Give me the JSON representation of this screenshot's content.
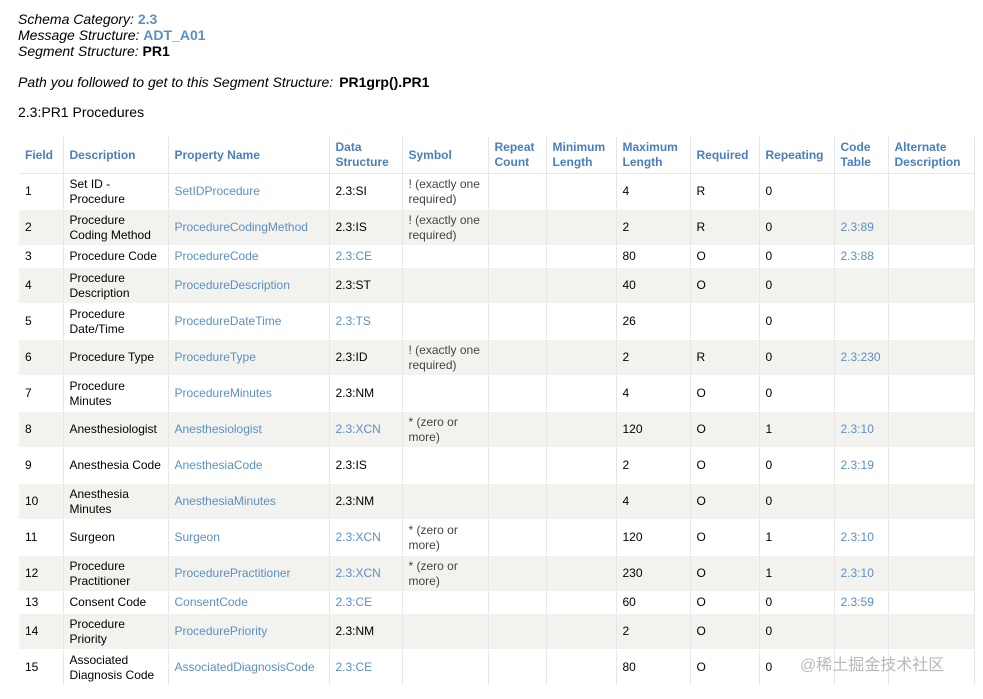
{
  "meta": {
    "schema_category_label": "Schema Category:",
    "schema_category": "2.3",
    "message_structure_label": "Message Structure:",
    "message_structure": "ADT_A01",
    "segment_structure_label": "Segment Structure:",
    "segment_structure": "PR1"
  },
  "path": {
    "label": "Path you followed to get to this Segment Structure:",
    "value": "PR1grp().PR1"
  },
  "segment_title": "2.3:PR1 Procedures",
  "columns": {
    "field": "Field",
    "description": "Description",
    "property_name": "Property Name",
    "data_structure": "Data Structure",
    "symbol": "Symbol",
    "repeat_count": "Repeat Count",
    "minimum_length": "Minimum Length",
    "maximum_length": "Maximum Length",
    "required": "Required",
    "repeating": "Repeating",
    "code_table": "Code Table",
    "alternate_description": "Alternate Description"
  },
  "rows": [
    {
      "field": "1",
      "description": "Set ID - Procedure",
      "property": "SetIDProcedure",
      "data_structure": "2.3:SI",
      "symbol": "! (exactly one required)",
      "repeat_count": "",
      "min_length": "",
      "max_length": "4",
      "required": "R",
      "repeating": "0",
      "code_table": "",
      "alt_desc": ""
    },
    {
      "field": "2",
      "description": "Procedure Coding Method",
      "property": "ProcedureCodingMethod",
      "data_structure": "2.3:IS",
      "symbol": "! (exactly one required)",
      "repeat_count": "",
      "min_length": "",
      "max_length": "2",
      "required": "R",
      "repeating": "0",
      "code_table": "2.3:89",
      "alt_desc": ""
    },
    {
      "field": "3",
      "description": "Procedure Code",
      "property": "ProcedureCode",
      "data_structure": "2.3:CE",
      "symbol": "",
      "repeat_count": "",
      "min_length": "",
      "max_length": "80",
      "required": "O",
      "repeating": "0",
      "code_table": "2.3:88",
      "alt_desc": ""
    },
    {
      "field": "4",
      "description": "Procedure Description",
      "property": "ProcedureDescription",
      "data_structure": "2.3:ST",
      "symbol": "",
      "repeat_count": "",
      "min_length": "",
      "max_length": "40",
      "required": "O",
      "repeating": "0",
      "code_table": "",
      "alt_desc": ""
    },
    {
      "field": "5",
      "description": "Procedure Date/Time",
      "property": "ProcedureDateTime",
      "data_structure": "2.3:TS",
      "symbol": "",
      "repeat_count": "",
      "min_length": "",
      "max_length": "26",
      "required": "",
      "repeating": "0",
      "code_table": "",
      "alt_desc": ""
    },
    {
      "field": "6",
      "description": "Procedure Type",
      "property": "ProcedureType",
      "data_structure": "2.3:ID",
      "symbol": "! (exactly one required)",
      "repeat_count": "",
      "min_length": "",
      "max_length": "2",
      "required": "R",
      "repeating": "0",
      "code_table": "2.3:230",
      "alt_desc": ""
    },
    {
      "field": "7",
      "description": "Procedure Minutes",
      "property": "ProcedureMinutes",
      "data_structure": "2.3:NM",
      "symbol": "",
      "repeat_count": "",
      "min_length": "",
      "max_length": "4",
      "required": "O",
      "repeating": "0",
      "code_table": "",
      "alt_desc": ""
    },
    {
      "field": "8",
      "description": "Anesthesiologist",
      "property": "Anesthesiologist",
      "data_structure": "2.3:XCN",
      "symbol": "* (zero or more)",
      "repeat_count": "",
      "min_length": "",
      "max_length": "120",
      "required": "O",
      "repeating": "1",
      "code_table": "2.3:10",
      "alt_desc": ""
    },
    {
      "field": "9",
      "description": "Anesthesia Code",
      "property": "AnesthesiaCode",
      "data_structure": "2.3:IS",
      "symbol": "",
      "repeat_count": "",
      "min_length": "",
      "max_length": "2",
      "required": "O",
      "repeating": "0",
      "code_table": "2.3:19",
      "alt_desc": ""
    },
    {
      "field": "10",
      "description": "Anesthesia Minutes",
      "property": "AnesthesiaMinutes",
      "data_structure": "2.3:NM",
      "symbol": "",
      "repeat_count": "",
      "min_length": "",
      "max_length": "4",
      "required": "O",
      "repeating": "0",
      "code_table": "",
      "alt_desc": ""
    },
    {
      "field": "11",
      "description": "Surgeon",
      "property": "Surgeon",
      "data_structure": "2.3:XCN",
      "symbol": "* (zero or more)",
      "repeat_count": "",
      "min_length": "",
      "max_length": "120",
      "required": "O",
      "repeating": "1",
      "code_table": "2.3:10",
      "alt_desc": ""
    },
    {
      "field": "12",
      "description": "Procedure Practitioner",
      "property": "ProcedurePractitioner",
      "data_structure": "2.3:XCN",
      "symbol": "* (zero or more)",
      "repeat_count": "",
      "min_length": "",
      "max_length": "230",
      "required": "O",
      "repeating": "1",
      "code_table": "2.3:10",
      "alt_desc": ""
    },
    {
      "field": "13",
      "description": "Consent Code",
      "property": "ConsentCode",
      "data_structure": "2.3:CE",
      "symbol": "",
      "repeat_count": "",
      "min_length": "",
      "max_length": "60",
      "required": "O",
      "repeating": "0",
      "code_table": "2.3:59",
      "alt_desc": ""
    },
    {
      "field": "14",
      "description": "Procedure Priority",
      "property": "ProcedurePriority",
      "data_structure": "2.3:NM",
      "symbol": "",
      "repeat_count": "",
      "min_length": "",
      "max_length": "2",
      "required": "O",
      "repeating": "0",
      "code_table": "",
      "alt_desc": ""
    },
    {
      "field": "15",
      "description": "Associated Diagnosis Code",
      "property": "AssociatedDiagnosisCode",
      "data_structure": "2.3:CE",
      "symbol": "",
      "repeat_count": "",
      "min_length": "",
      "max_length": "80",
      "required": "O",
      "repeating": "0",
      "code_table": "",
      "alt_desc": ""
    }
  ],
  "linked_data_structures": [
    "2.3:CE",
    "2.3:TS",
    "2.3:XCN"
  ],
  "watermark": "@稀土掘金技术社区"
}
